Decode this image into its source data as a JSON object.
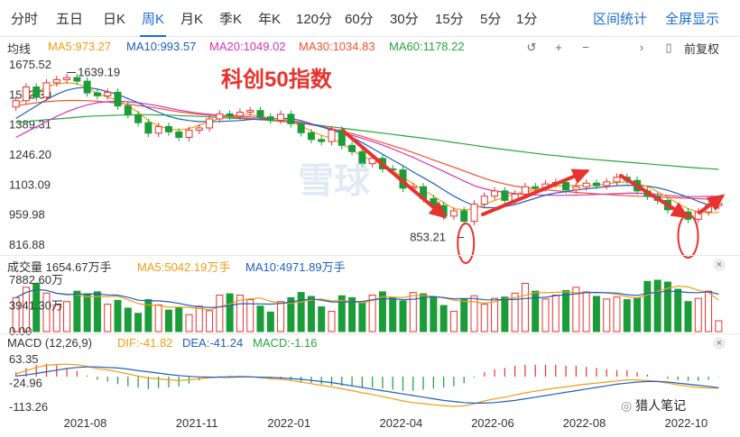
{
  "periods": [
    "分时",
    "五日",
    "日K",
    "周K",
    "月K",
    "季K",
    "年K",
    "120分",
    "60分",
    "30分",
    "15分",
    "5分",
    "1分"
  ],
  "active_period": "周K",
  "interval_stats": "区间统计",
  "fullscreen": "全屏显示",
  "ma_label": "均线",
  "ma": [
    {
      "text": "MA5:973.27",
      "color": "#f39c12"
    },
    {
      "text": "MA10:993.57",
      "color": "#1f5fbf"
    },
    {
      "text": "MA20:1049.02",
      "color": "#d633b8"
    },
    {
      "text": "MA30:1034.83",
      "color": "#f2522e"
    },
    {
      "text": "MA60:1178.22",
      "color": "#27a53c"
    }
  ],
  "controls": {
    "undo": "↺",
    "zoom_in": "+",
    "zoom_out": "−",
    "split": "▯",
    "adjust": "前复权"
  },
  "overlay_title": "科创50指数",
  "watermark": "雪球",
  "footer_brand": "猎人笔记",
  "volume": {
    "label": "成交量 1654.67万手",
    "ma5": "MA5:5042.19万手",
    "ma10": "MA10:4971.89万手"
  },
  "macd": {
    "label": "MACD (12,26,9)",
    "dif": "DIF:-41.82",
    "dea": "DEA:-41.24",
    "macd": "MACD:-1.16"
  },
  "close_symbol": "×",
  "chart_data": {
    "type": "candlestick",
    "title": "科创50指数",
    "price_ylim": [
      816.88,
      1675.52
    ],
    "price_ticks": [
      "1675.52",
      "1532.30",
      "1389.31",
      "1246.20",
      "1103.09",
      "959.98",
      "816.88"
    ],
    "x_ticks": [
      "2021-08",
      "2021-11",
      "2022-01",
      "2022-04",
      "2022-06",
      "2022-08",
      "2022-10"
    ],
    "high_label": "1639.19",
    "low_label": "853.21",
    "volume_ticks": [
      "7882.60万",
      "3941.30万",
      "0.00"
    ],
    "macd_ticks": [
      "63.35",
      "-24.96",
      "-113.26"
    ],
    "closes": [
      1505,
      1570,
      1522,
      1590,
      1605,
      1615,
      1598,
      1542,
      1528,
      1545,
      1480,
      1438,
      1400,
      1350,
      1382,
      1356,
      1330,
      1364,
      1375,
      1418,
      1442,
      1432,
      1450,
      1458,
      1428,
      1412,
      1440,
      1395,
      1352,
      1320,
      1310,
      1365,
      1292,
      1262,
      1205,
      1230,
      1180,
      1175,
      1088,
      1095,
      1038,
      1005,
      955,
      980,
      930,
      1012,
      1050,
      1075,
      1030,
      1060,
      1095,
      1090,
      1108,
      1115,
      1080,
      1095,
      1112,
      1100,
      1118,
      1140,
      1125,
      1075,
      1050,
      1030,
      985,
      975,
      940,
      975,
      1005,
      1015
    ],
    "ma5": [
      1480,
      1520,
      1545,
      1570,
      1585,
      1590,
      1585,
      1568,
      1540,
      1522,
      1508,
      1480,
      1450,
      1410,
      1385,
      1370,
      1365,
      1372,
      1388,
      1405,
      1420,
      1432,
      1440,
      1438,
      1432,
      1420,
      1415,
      1405,
      1385,
      1360,
      1340,
      1325,
      1300,
      1270,
      1240,
      1220,
      1200,
      1172,
      1140,
      1110,
      1080,
      1050,
      1020,
      990,
      985,
      990,
      1010,
      1030,
      1045,
      1060,
      1070,
      1080,
      1090,
      1098,
      1100,
      1102,
      1100,
      1102,
      1108,
      1115,
      1118,
      1110,
      1095,
      1072,
      1045,
      1015,
      990,
      975,
      970,
      973
    ],
    "ma10": [
      1420,
      1450,
      1480,
      1510,
      1535,
      1555,
      1565,
      1568,
      1560,
      1548,
      1535,
      1515,
      1495,
      1470,
      1450,
      1430,
      1418,
      1410,
      1405,
      1405,
      1406,
      1408,
      1410,
      1415,
      1418,
      1418,
      1420,
      1420,
      1410,
      1395,
      1380,
      1365,
      1350,
      1330,
      1305,
      1278,
      1250,
      1222,
      1195,
      1165,
      1138,
      1110,
      1080,
      1050,
      1025,
      1005,
      995,
      995,
      1000,
      1010,
      1025,
      1040,
      1055,
      1065,
      1072,
      1080,
      1085,
      1090,
      1095,
      1100,
      1102,
      1100,
      1098,
      1090,
      1078,
      1062,
      1045,
      1025,
      1008,
      994
    ],
    "ma20": [
      1330,
      1355,
      1380,
      1405,
      1430,
      1452,
      1470,
      1485,
      1495,
      1500,
      1502,
      1500,
      1495,
      1488,
      1480,
      1470,
      1460,
      1452,
      1445,
      1440,
      1436,
      1432,
      1430,
      1428,
      1424,
      1420,
      1415,
      1410,
      1402,
      1392,
      1380,
      1368,
      1355,
      1340,
      1325,
      1310,
      1293,
      1275,
      1255,
      1235,
      1212,
      1190,
      1168,
      1145,
      1122,
      1100,
      1085,
      1075,
      1068,
      1062,
      1058,
      1056,
      1055,
      1054,
      1054,
      1055,
      1056,
      1058,
      1060,
      1062,
      1064,
      1064,
      1062,
      1058,
      1054,
      1050,
      1048,
      1048,
      1049,
      1049
    ],
    "ma30": [
      1480,
      1488,
      1495,
      1500,
      1504,
      1506,
      1506,
      1505,
      1502,
      1498,
      1493,
      1488,
      1482,
      1475,
      1468,
      1460,
      1452,
      1445,
      1440,
      1436,
      1432,
      1428,
      1424,
      1420,
      1416,
      1412,
      1408,
      1404,
      1398,
      1390,
      1382,
      1372,
      1360,
      1348,
      1335,
      1320,
      1305,
      1290,
      1275,
      1258,
      1240,
      1222,
      1205,
      1188,
      1170,
      1152,
      1135,
      1120,
      1108,
      1098,
      1090,
      1085,
      1080,
      1076,
      1072,
      1068,
      1064,
      1061,
      1058,
      1055,
      1052,
      1050,
      1048,
      1046,
      1044,
      1042,
      1040,
      1038,
      1036,
      1035
    ],
    "ma60": [
      1400,
      1405,
      1410,
      1414,
      1418,
      1422,
      1426,
      1430,
      1432,
      1434,
      1436,
      1437,
      1438,
      1438,
      1437,
      1436,
      1434,
      1432,
      1430,
      1428,
      1425,
      1422,
      1420,
      1417,
      1414,
      1410,
      1406,
      1402,
      1397,
      1392,
      1386,
      1380,
      1374,
      1368,
      1362,
      1356,
      1350,
      1344,
      1338,
      1332,
      1326,
      1320,
      1313,
      1306,
      1299,
      1292,
      1285,
      1278,
      1272,
      1266,
      1260,
      1254,
      1248,
      1243,
      1238,
      1233,
      1228,
      1224,
      1220,
      1216,
      1212,
      1208,
      1204,
      1200,
      1196,
      1192,
      1188,
      1184,
      1181,
      1178
    ],
    "volumes": [
      5200,
      6800,
      7400,
      5900,
      4100,
      4600,
      6200,
      5800,
      6100,
      4200,
      4800,
      3600,
      2800,
      4900,
      4100,
      3300,
      3700,
      2600,
      3900,
      3200,
      5600,
      5800,
      5600,
      4900,
      3900,
      3000,
      4600,
      5200,
      6000,
      5400,
      3800,
      3100,
      5500,
      5200,
      4400,
      5600,
      6100,
      5200,
      4700,
      6000,
      5800,
      5300,
      4000,
      3100,
      5000,
      5500,
      4200,
      5100,
      5300,
      5900,
      7400,
      6200,
      5000,
      5600,
      6300,
      6800,
      6100,
      5400,
      5000,
      5300,
      4900,
      5200,
      7700,
      7882,
      7600,
      6500,
      4600,
      5100,
      6200,
      1654
    ],
    "macd_dif": [
      10,
      22,
      34,
      42,
      45,
      46,
      44,
      38,
      30,
      25,
      18,
      10,
      2,
      -5,
      -8,
      -12,
      -14,
      -12,
      -8,
      -4,
      -1,
      0,
      1,
      0,
      -4,
      -8,
      -10,
      -14,
      -20,
      -26,
      -32,
      -38,
      -45,
      -52,
      -60,
      -66,
      -74,
      -82,
      -90,
      -96,
      -100,
      -104,
      -108,
      -110,
      -108,
      -100,
      -90,
      -82,
      -76,
      -68,
      -60,
      -54,
      -48,
      -42,
      -38,
      -32,
      -28,
      -24,
      -20,
      -16,
      -12,
      -12,
      -14,
      -18,
      -24,
      -30,
      -36,
      -40,
      -42,
      -41.82
    ],
    "macd_dea": [
      2,
      6,
      12,
      18,
      24,
      30,
      34,
      36,
      36,
      34,
      32,
      28,
      22,
      18,
      13,
      8,
      4,
      1,
      -1,
      -2,
      -2,
      -2,
      -1,
      -1,
      -2,
      -3,
      -5,
      -7,
      -10,
      -14,
      -18,
      -22,
      -28,
      -34,
      -40,
      -46,
      -52,
      -58,
      -64,
      -70,
      -76,
      -82,
      -88,
      -92,
      -96,
      -98,
      -98,
      -96,
      -92,
      -88,
      -82,
      -76,
      -70,
      -64,
      -58,
      -52,
      -46,
      -40,
      -34,
      -28,
      -24,
      -20,
      -18,
      -18,
      -20,
      -24,
      -28,
      -32,
      -36,
      -41.24
    ]
  }
}
